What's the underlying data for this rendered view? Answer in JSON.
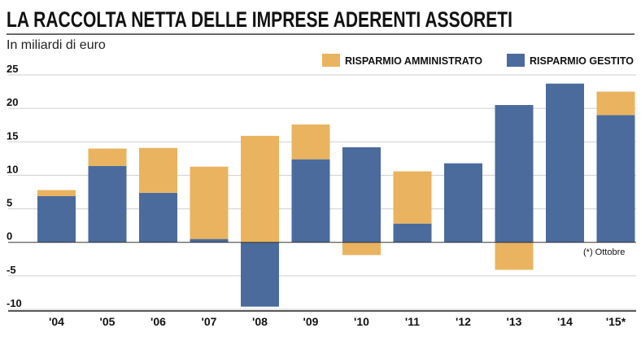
{
  "chart_data": {
    "type": "bar",
    "stacked": true,
    "title": "LA RACCOLTA NETTA DELLE IMPRESE ADERENTI ASSORETI",
    "subtitle": "In miliardi di euro",
    "footnote": "(*) Ottobre",
    "categories": [
      "'04",
      "'05",
      "'06",
      "'07",
      "'08",
      "'09",
      "'10",
      "'11",
      "'12",
      "'13",
      "'14",
      "'15*"
    ],
    "series": [
      {
        "name": "RISPARMIO GESTITO",
        "color": "#4a6b9c",
        "values": [
          6.9,
          11.4,
          7.4,
          0.5,
          -9.6,
          12.4,
          14.2,
          2.8,
          11.8,
          20.5,
          23.7,
          19.0
        ]
      },
      {
        "name": "RISPARMIO AMMINISTRATO",
        "color": "#e9b35f",
        "values": [
          0.9,
          2.6,
          6.7,
          10.8,
          15.9,
          5.2,
          -1.9,
          7.8,
          0,
          -4.1,
          0,
          3.5
        ]
      }
    ],
    "legend_order": [
      "RISPARMIO AMMINISTRATO",
      "RISPARMIO GESTITO"
    ],
    "ylim": [
      -10,
      25
    ],
    "yticks": [
      -10,
      -5,
      0,
      5,
      10,
      15,
      20,
      25
    ],
    "grid": true,
    "legend_position": "top-right"
  }
}
